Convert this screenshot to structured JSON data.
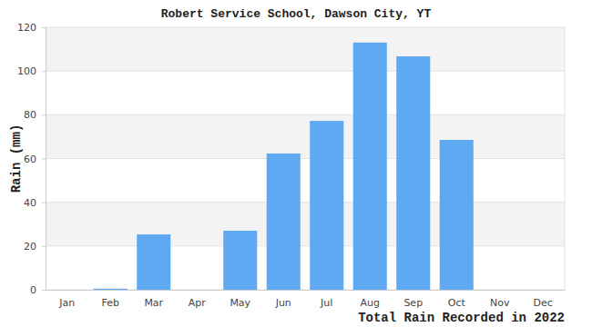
{
  "chart_data": {
    "type": "bar",
    "title": "Robert Service School, Dawson City, YT",
    "x_label": "Total Rain Recorded in 2022",
    "y_label": "Rain (mm)",
    "categories": [
      "Jan",
      "Feb",
      "Mar",
      "Apr",
      "May",
      "Jun",
      "Jul",
      "Aug",
      "Sep",
      "Oct",
      "Nov",
      "Dec"
    ],
    "values": [
      0,
      0.5,
      25.3,
      0,
      27,
      62.3,
      77.2,
      113,
      106.7,
      68.5,
      0,
      0
    ],
    "color": "#5fa8f2",
    "ylim": [
      0,
      120
    ],
    "yticks": [
      0,
      20,
      40,
      60,
      80,
      100,
      120
    ],
    "grid": true
  }
}
